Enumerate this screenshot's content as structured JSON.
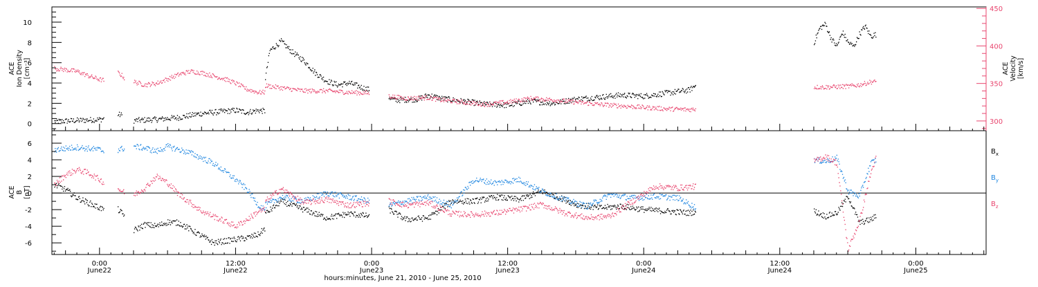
{
  "colors": {
    "black": "#000000",
    "pink": "#e8456e",
    "blue": "#1f86e0",
    "axis": "#000000"
  },
  "chart_data": [
    {
      "type": "scatter",
      "panel": "top",
      "ylabel_left_lines": [
        "ACE",
        "Ion Density",
        "[cm⁻³]"
      ],
      "ylabel_right_lines": [
        "ACE",
        "Velocity",
        "[km/s]"
      ],
      "ylim_left": [
        -0.7,
        11.5
      ],
      "ylim_right": [
        287,
        452
      ],
      "left_ticks": [
        "0",
        "2",
        "4",
        "6",
        "8",
        "10"
      ],
      "left_tick_values": [
        0,
        2,
        4,
        6,
        8,
        10
      ],
      "right_ticks": [
        "300",
        "350",
        "400",
        "450"
      ],
      "right_tick_values": [
        300,
        350,
        400,
        450
      ],
      "series": [
        {
          "axis": "left",
          "color": "black",
          "segments": [
            {
              "x": [
                -4.0,
                -2.0,
                0.0,
                0.4
              ],
              "y": [
                0.2,
                0.3,
                0.4,
                0.5
              ]
            },
            {
              "x": [
                1.6,
                2.0
              ],
              "y": [
                0.9,
                0.8
              ]
            },
            {
              "x": [
                3.0,
                5.0,
                6.0,
                7.0,
                8.0,
                9.0,
                10.0,
                12.0,
                13.0,
                14.0,
                14.6
              ],
              "y": [
                0.3,
                0.4,
                0.5,
                0.6,
                0.8,
                1.0,
                1.1,
                1.3,
                1.1,
                1.3,
                1.2
              ]
            },
            {
              "x": [
                14.6,
                15.0,
                16.0,
                17.0,
                18.0,
                19.0,
                20.0,
                21.0,
                22.0,
                23.0,
                23.8
              ],
              "y": [
                4.5,
                7.2,
                8.1,
                7.0,
                6.2,
                5.0,
                4.2,
                3.8,
                4.0,
                3.6,
                3.3
              ]
            },
            {
              "x": [
                25.5,
                26.0,
                28.0,
                29.0,
                30.0,
                32.0,
                34.0,
                36.0,
                38.0,
                40.0,
                42.0,
                44.0,
                46.0,
                48.0,
                50.0,
                52.0,
                52.6
              ],
              "y": [
                2.6,
                2.3,
                2.4,
                2.8,
                2.5,
                2.2,
                1.9,
                1.8,
                2.2,
                2.0,
                2.4,
                2.6,
                2.8,
                2.7,
                3.0,
                3.3,
                3.8
              ]
            },
            {
              "x": [
                63.0,
                63.5,
                64.0,
                64.5,
                65.0,
                65.5,
                66.0,
                66.5,
                67.0,
                67.5,
                68.0,
                68.5
              ],
              "y": [
                8.0,
                9.4,
                9.8,
                8.4,
                7.6,
                9.0,
                8.0,
                7.6,
                8.8,
                9.6,
                8.6,
                8.8
              ]
            }
          ]
        },
        {
          "axis": "right",
          "color": "pink",
          "segments": [
            {
              "x": [
                -4.0,
                -2.0,
                -1.0,
                0.0,
                0.4
              ],
              "y": [
                370,
                366,
                360,
                355,
                354
              ]
            },
            {
              "x": [
                1.6,
                2.0,
                2.2
              ],
              "y": [
                364,
                360,
                356
              ]
            },
            {
              "x": [
                3.0,
                4.0,
                5.0,
                6.0,
                7.0,
                8.0,
                9.0,
                10.0,
                11.0,
                12.0,
                13.0,
                14.0,
                14.6
              ],
              "y": [
                352,
                348,
                350,
                356,
                362,
                366,
                364,
                360,
                356,
                350,
                342,
                338,
                338
              ]
            },
            {
              "x": [
                14.6,
                16.0,
                18.0,
                20.0,
                22.0,
                23.8
              ],
              "y": [
                347,
                344,
                340,
                340,
                338,
                337
              ]
            },
            {
              "x": [
                25.5,
                27.0,
                29.0,
                30.0,
                32.0,
                34.0,
                36.0,
                38.0,
                40.0,
                42.0,
                44.0,
                46.0,
                48.0,
                50.0,
                52.0,
                52.6
              ],
              "y": [
                333,
                330,
                331,
                328,
                325,
                322,
                325,
                330,
                328,
                325,
                322,
                320,
                318,
                316,
                315,
                316
              ]
            },
            {
              "x": [
                63.0,
                64.0,
                66.0,
                67.0,
                68.0,
                68.5
              ],
              "y": [
                345,
                345,
                346,
                348,
                352,
                352
              ]
            }
          ]
        }
      ]
    },
    {
      "type": "scatter",
      "panel": "bottom",
      "ylabel_left_lines": [
        "ACE",
        "B",
        "[nT]"
      ],
      "ylim": [
        -7.4,
        7.5
      ],
      "left_ticks": [
        "-6",
        "-4",
        "-2",
        "0",
        "2",
        "4",
        "6"
      ],
      "left_tick_values": [
        -6,
        -4,
        -2,
        0,
        2,
        4,
        6
      ],
      "zero_line": 0,
      "x_ticks": [
        "0:00",
        "12:00",
        "0:00",
        "12:00",
        "0:00",
        "12:00",
        "0:00"
      ],
      "x_tick_values": [
        0,
        12,
        24,
        36,
        48,
        60,
        72
      ],
      "x_day_labels": [
        "June22",
        "June22",
        "June23",
        "June23",
        "June24",
        "June24",
        "June25"
      ],
      "xlim": [
        -4.2,
        78.2
      ],
      "xlabel": "hours:minutes, June 21, 2010 - June 25, 2010",
      "series": [
        {
          "name": "Bx",
          "color": "black",
          "segments": [
            {
              "x": [
                -4.0,
                -3.0,
                -2.0,
                -1.0,
                0.0,
                0.4
              ],
              "y": [
                1.0,
                0.4,
                -0.6,
                -1.2,
                -1.8,
                -2.0
              ]
            },
            {
              "x": [
                1.6,
                2.2
              ],
              "y": [
                -2.0,
                -2.8
              ]
            },
            {
              "x": [
                3.0,
                4.0,
                5.0,
                6.0,
                7.0,
                8.0,
                9.0,
                10.0,
                11.0,
                12.0,
                13.0,
                14.0,
                14.6
              ],
              "y": [
                -4.5,
                -3.8,
                -4.0,
                -3.5,
                -3.6,
                -4.4,
                -5.2,
                -6.0,
                -5.8,
                -5.6,
                -5.4,
                -5.0,
                -4.2
              ]
            },
            {
              "x": [
                14.6,
                16.0,
                18.0,
                20.0,
                22.0,
                23.8
              ],
              "y": [
                -2.5,
                -1.0,
                -2.0,
                -3.0,
                -2.5,
                -2.8
              ]
            },
            {
              "x": [
                25.5,
                27.0,
                29.0,
                31.0,
                33.0,
                35.0,
                37.0,
                39.0,
                41.0,
                42.0,
                44.0,
                46.0,
                48.0,
                50.0,
                52.0,
                52.6
              ],
              "y": [
                -2.0,
                -3.2,
                -3.0,
                -1.0,
                -1.0,
                -0.5,
                -0.8,
                0.2,
                -0.8,
                -1.4,
                -1.8,
                -1.6,
                -2.0,
                -2.2,
                -2.4,
                -2.2
              ]
            },
            {
              "x": [
                63.0,
                64.0,
                65.0,
                66.0,
                67.0,
                68.0,
                68.5
              ],
              "y": [
                -2.2,
                -2.8,
                -2.4,
                -0.4,
                -3.6,
                -3.2,
                -2.8
              ]
            }
          ]
        },
        {
          "name": "By",
          "color": "blue",
          "segments": [
            {
              "x": [
                -4.0,
                -2.0,
                0.0,
                0.4
              ],
              "y": [
                5.2,
                5.5,
                5.2,
                5.0
              ]
            },
            {
              "x": [
                1.6,
                2.2
              ],
              "y": [
                5.2,
                5.4
              ]
            },
            {
              "x": [
                3.0,
                4.0,
                5.0,
                6.0,
                7.0,
                8.0,
                9.0,
                10.0,
                11.0,
                12.0,
                13.0,
                14.0,
                14.6
              ],
              "y": [
                5.6,
                5.4,
                5.0,
                5.6,
                5.2,
                4.8,
                4.2,
                3.6,
                2.6,
                1.6,
                0.4,
                -1.5,
                -2.0
              ]
            },
            {
              "x": [
                14.6,
                16.0,
                18.0,
                20.0,
                22.0,
                23.8
              ],
              "y": [
                -1.5,
                -0.5,
                -1.0,
                0.0,
                -0.5,
                -1.0
              ]
            },
            {
              "x": [
                25.5,
                27.0,
                29.0,
                31.0,
                33.0,
                35.0,
                37.0,
                39.0,
                41.0,
                43.0,
                45.0,
                47.0,
                49.0,
                51.0,
                52.6
              ],
              "y": [
                -1.5,
                -1.0,
                -0.5,
                -1.5,
                1.6,
                1.2,
                1.6,
                0.2,
                -0.8,
                -1.6,
                -0.2,
                -0.6,
                -0.4,
                -0.6,
                -1.8
              ]
            },
            {
              "x": [
                63.0,
                64.0,
                65.0,
                66.0,
                67.0,
                68.0,
                68.5
              ],
              "y": [
                4.0,
                3.8,
                4.2,
                0.2,
                -0.4,
                3.6,
                4.0
              ]
            }
          ]
        },
        {
          "name": "Bz",
          "color": "pink",
          "segments": [
            {
              "x": [
                -4.0,
                -3.0,
                -2.0,
                -1.0,
                0.0,
                0.4
              ],
              "y": [
                1.0,
                2.2,
                2.8,
                2.4,
                1.6,
                1.2
              ]
            },
            {
              "x": [
                1.6,
                2.2
              ],
              "y": [
                0.5,
                0.0
              ]
            },
            {
              "x": [
                3.0,
                4.0,
                5.0,
                6.0,
                7.0,
                8.0,
                9.0,
                10.0,
                11.0,
                12.0,
                13.0,
                14.0,
                14.6
              ],
              "y": [
                -0.2,
                0.6,
                2.0,
                1.2,
                -0.2,
                -1.2,
                -2.2,
                -2.8,
                -3.4,
                -4.0,
                -3.2,
                -2.2,
                -2.0
              ]
            },
            {
              "x": [
                14.6,
                16.0,
                18.0,
                20.0,
                22.0,
                23.8
              ],
              "y": [
                -1.0,
                0.5,
                -1.2,
                -0.8,
                -1.5,
                -1.2
              ]
            },
            {
              "x": [
                25.5,
                27.0,
                29.0,
                31.0,
                33.0,
                35.0,
                37.0,
                39.0,
                41.0,
                43.0,
                45.0,
                47.0,
                49.0,
                51.0,
                52.6
              ],
              "y": [
                -1.0,
                -1.5,
                -1.2,
                -2.5,
                -2.6,
                -2.4,
                -2.0,
                -1.4,
                -2.4,
                -3.0,
                -2.8,
                -1.0,
                0.8,
                0.6,
                0.8
              ]
            },
            {
              "x": [
                63.0,
                64.0,
                65.0,
                66.0,
                67.0,
                68.0,
                68.5
              ],
              "y": [
                3.8,
                4.4,
                3.6,
                -6.8,
                -3.4,
                2.4,
                4.4
              ]
            }
          ]
        }
      ],
      "legend": [
        {
          "base": "B",
          "sub": "x",
          "color": "black"
        },
        {
          "base": "B",
          "sub": "y",
          "color": "blue"
        },
        {
          "base": "B",
          "sub": "z",
          "color": "pink"
        }
      ],
      "legend_position": "right"
    }
  ]
}
